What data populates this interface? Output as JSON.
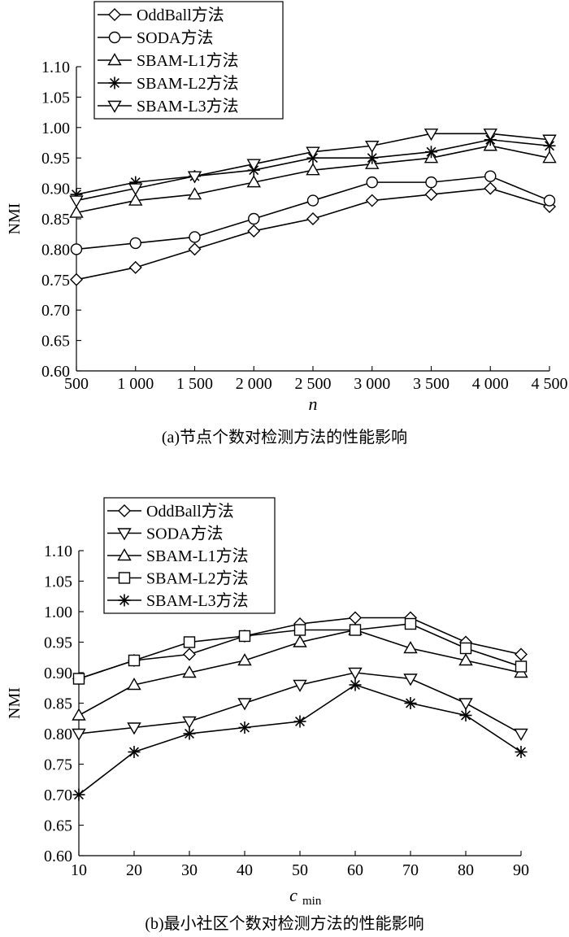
{
  "chart_data": [
    {
      "type": "line",
      "caption": "(a)节点个数对检测方法的性能影响",
      "xlabel": "n",
      "ylabel": "NMI",
      "categories": [
        "500",
        "1 000",
        "1 500",
        "2 000",
        "2 500",
        "3 000",
        "3 500",
        "4 000",
        "4 500"
      ],
      "ylim": [
        0.6,
        1.1
      ],
      "yticks": [
        "0.60",
        "0.65",
        "0.70",
        "0.75",
        "0.80",
        "0.85",
        "0.90",
        "0.95",
        "1.00",
        "1.05",
        "1.10"
      ],
      "grid": false,
      "legend_position": "top-left",
      "series": [
        {
          "name": "OddBall方法",
          "marker": "diamond",
          "values": [
            0.75,
            0.77,
            0.8,
            0.83,
            0.85,
            0.88,
            0.89,
            0.9,
            0.87
          ]
        },
        {
          "name": "SODA方法",
          "marker": "circle",
          "values": [
            0.8,
            0.81,
            0.82,
            0.85,
            0.88,
            0.91,
            0.91,
            0.92,
            0.88
          ]
        },
        {
          "name": "SBAM-L1方法",
          "marker": "triangle-up",
          "values": [
            0.86,
            0.88,
            0.89,
            0.91,
            0.93,
            0.94,
            0.95,
            0.97,
            0.95
          ]
        },
        {
          "name": "SBAM-L2方法",
          "marker": "asterisk",
          "values": [
            0.89,
            0.91,
            0.92,
            0.93,
            0.95,
            0.95,
            0.96,
            0.98,
            0.97
          ]
        },
        {
          "name": "SBAM-L3方法",
          "marker": "triangle-down",
          "values": [
            0.88,
            0.9,
            0.92,
            0.94,
            0.96,
            0.97,
            0.99,
            0.99,
            0.98
          ]
        }
      ]
    },
    {
      "type": "line",
      "caption": "(b)最小社区个数对检测方法的性能影响",
      "xlabel": "c",
      "xlabel_sub": "min",
      "ylabel": "NMI",
      "categories": [
        "10",
        "20",
        "30",
        "40",
        "50",
        "60",
        "70",
        "80",
        "90"
      ],
      "ylim": [
        0.6,
        1.1
      ],
      "yticks": [
        "0.60",
        "0.65",
        "0.70",
        "0.75",
        "0.80",
        "0.85",
        "0.90",
        "0.95",
        "1.00",
        "1.05",
        "1.10"
      ],
      "grid": false,
      "legend_position": "top-left",
      "series": [
        {
          "name": "OddBall方法",
          "marker": "diamond",
          "values": [
            0.89,
            0.92,
            0.93,
            0.96,
            0.98,
            0.99,
            0.99,
            0.95,
            0.93
          ]
        },
        {
          "name": "SODA方法",
          "marker": "triangle-down",
          "values": [
            0.8,
            0.81,
            0.82,
            0.85,
            0.88,
            0.9,
            0.89,
            0.85,
            0.8
          ]
        },
        {
          "name": "SBAM-L1方法",
          "marker": "triangle-up",
          "values": [
            0.83,
            0.88,
            0.9,
            0.92,
            0.95,
            0.97,
            0.94,
            0.92,
            0.9
          ]
        },
        {
          "name": "SBAM-L2方法",
          "marker": "square",
          "values": [
            0.89,
            0.92,
            0.95,
            0.96,
            0.97,
            0.97,
            0.98,
            0.94,
            0.91
          ]
        },
        {
          "name": "SBAM-L3方法",
          "marker": "asterisk",
          "values": [
            0.7,
            0.77,
            0.8,
            0.81,
            0.82,
            0.88,
            0.85,
            0.83,
            0.77
          ]
        }
      ]
    }
  ]
}
